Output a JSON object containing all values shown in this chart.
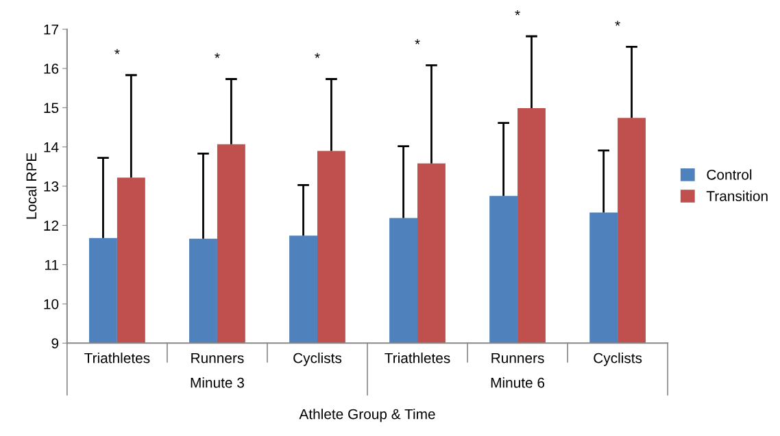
{
  "chart_data": {
    "type": "bar",
    "xlabel": "Athlete Group & Time",
    "ylabel": "Local RPE",
    "categories": [
      "Triathletes",
      "Runners",
      "Cyclists",
      "Triathletes",
      "Runners",
      "Cyclists"
    ],
    "series": [
      {
        "name": "Control",
        "color": "#4f81bd",
        "values": [
          11.68,
          11.66,
          11.74,
          12.19,
          12.75,
          12.33
        ],
        "errors": [
          [
            11.68,
            13.72
          ],
          [
            11.66,
            13.83
          ],
          [
            11.74,
            13.03
          ],
          [
            12.19,
            14.02
          ],
          [
            12.75,
            14.61
          ],
          [
            12.33,
            13.91
          ]
        ]
      },
      {
        "name": "Transition",
        "color": "#c0504d",
        "values": [
          13.22,
          14.07,
          13.9,
          13.58,
          14.99,
          14.74
        ],
        "errors": [
          [
            13.22,
            15.83
          ],
          [
            14.07,
            15.73
          ],
          [
            13.9,
            15.73
          ],
          [
            13.58,
            16.08
          ],
          [
            14.99,
            16.82
          ],
          [
            14.74,
            16.55
          ]
        ]
      }
    ],
    "annotations": [
      "*",
      "*",
      "*",
      "*",
      "*",
      "*",
      "Minute 3",
      "Minute 6"
    ],
    "ylim": [
      9,
      17
    ],
    "yticks": [
      9,
      10,
      11,
      12,
      13,
      14,
      15,
      16,
      17
    ],
    "grid": false,
    "legend": "right"
  }
}
